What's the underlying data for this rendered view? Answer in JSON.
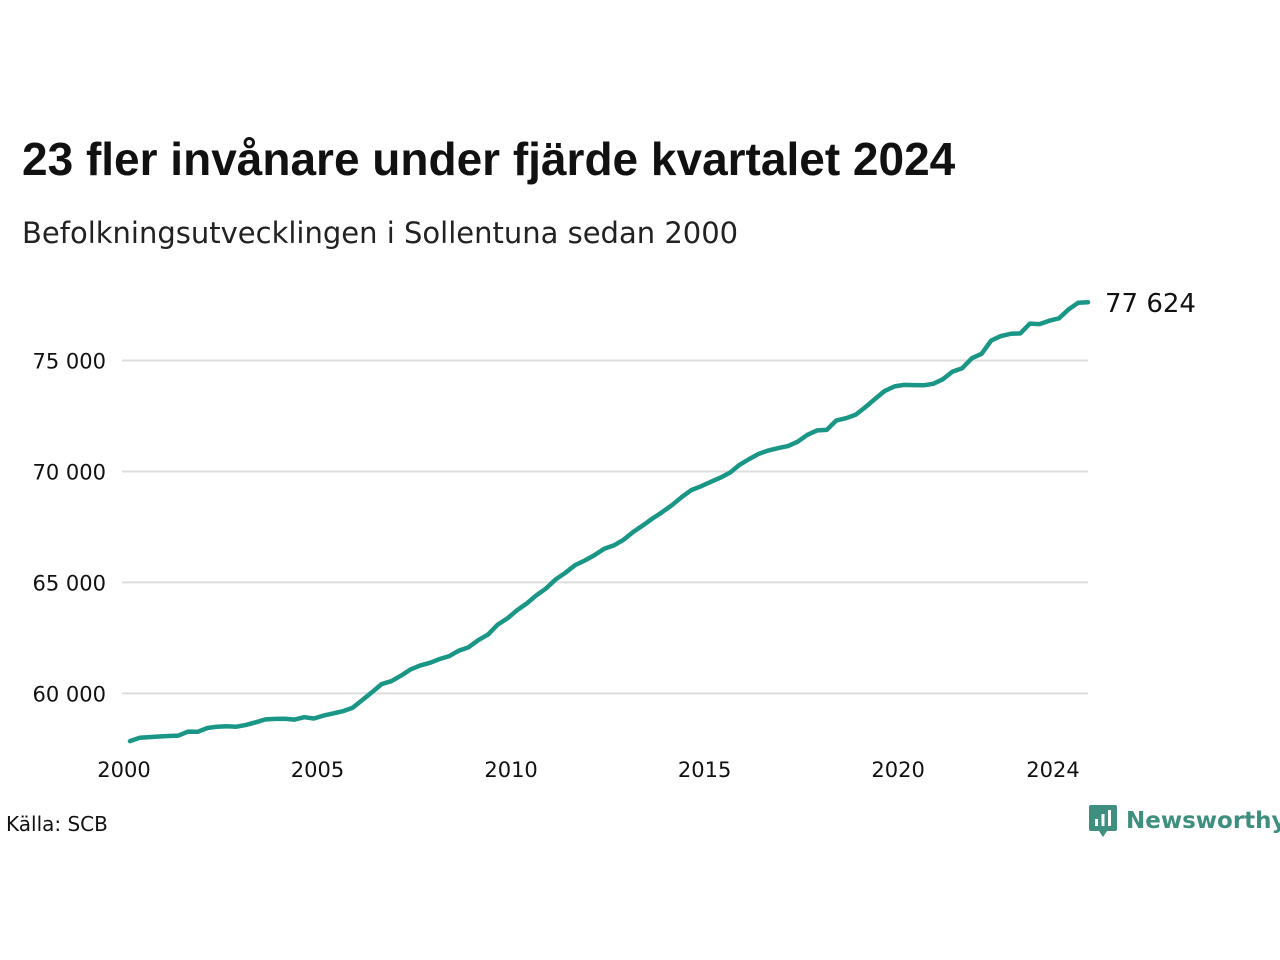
{
  "chart_data": {
    "type": "line",
    "title": "23 fler invånare under fjärde kvartalet 2024",
    "subtitle": "Befolkningsutvecklingen i Sollentuna sedan 2000",
    "xlabel": "",
    "ylabel": "",
    "x_ticks": [
      "2000",
      "2005",
      "2010",
      "2015",
      "2020",
      "2024"
    ],
    "x_tick_values": [
      2000,
      2005,
      2010,
      2015,
      2020,
      2024
    ],
    "y_ticks": [
      "60 000",
      "65 000",
      "70 000",
      "75 000"
    ],
    "y_tick_values": [
      60000,
      65000,
      70000,
      75000
    ],
    "xlim": [
      2000,
      2024.75
    ],
    "ylim": [
      57000,
      78400
    ],
    "grid": "horizontal",
    "line_color": "#1a9687",
    "end_label": "77 624",
    "quarters": [
      "2000Q1",
      "2000Q2",
      "2000Q3",
      "2000Q4",
      "2001Q1",
      "2001Q2",
      "2001Q3",
      "2001Q4",
      "2002Q1",
      "2002Q2",
      "2002Q3",
      "2002Q4",
      "2003Q1",
      "2003Q2",
      "2003Q3",
      "2003Q4",
      "2004Q1",
      "2004Q2",
      "2004Q3",
      "2004Q4",
      "2005Q1",
      "2005Q2",
      "2005Q3",
      "2005Q4",
      "2006Q1",
      "2006Q2",
      "2006Q3",
      "2006Q4",
      "2007Q1",
      "2007Q2",
      "2007Q3",
      "2007Q4",
      "2008Q1",
      "2008Q2",
      "2008Q3",
      "2008Q4",
      "2009Q1",
      "2009Q2",
      "2009Q3",
      "2009Q4",
      "2010Q1",
      "2010Q2",
      "2010Q3",
      "2010Q4",
      "2011Q1",
      "2011Q2",
      "2011Q3",
      "2011Q4",
      "2012Q1",
      "2012Q2",
      "2012Q3",
      "2012Q4",
      "2013Q1",
      "2013Q2",
      "2013Q3",
      "2013Q4",
      "2014Q1",
      "2014Q2",
      "2014Q3",
      "2014Q4",
      "2015Q1",
      "2015Q2",
      "2015Q3",
      "2015Q4",
      "2016Q1",
      "2016Q2",
      "2016Q3",
      "2016Q4",
      "2017Q1",
      "2017Q2",
      "2017Q3",
      "2017Q4",
      "2018Q1",
      "2018Q2",
      "2018Q3",
      "2018Q4",
      "2019Q1",
      "2019Q2",
      "2019Q3",
      "2019Q4",
      "2020Q1",
      "2020Q2",
      "2020Q3",
      "2020Q4",
      "2021Q1",
      "2021Q2",
      "2021Q3",
      "2021Q4",
      "2022Q1",
      "2022Q2",
      "2022Q3",
      "2022Q4",
      "2023Q1",
      "2023Q2",
      "2023Q3",
      "2023Q4",
      "2024Q1",
      "2024Q2",
      "2024Q3",
      "2024Q4"
    ],
    "series": [
      {
        "values": [
          57850,
          58000,
          58030,
          58060,
          58080,
          58100,
          58280,
          58270,
          58440,
          58500,
          58520,
          58500,
          58580,
          58700,
          58830,
          58850,
          58860,
          58820,
          58930,
          58870,
          59000,
          59100,
          59200,
          59350,
          59700,
          60050,
          60420,
          60550,
          60800,
          61080,
          61260,
          61380,
          61550,
          61680,
          61930,
          62080,
          62400,
          62650,
          63100,
          63380,
          63750,
          64050,
          64420,
          64730,
          65140,
          65440,
          65780,
          65990,
          66230,
          66520,
          66670,
          66920,
          67270,
          67570,
          67880,
          68170,
          68480,
          68840,
          69160,
          69330,
          69530,
          69720,
          69950,
          70300,
          70560,
          70800,
          70950,
          71050,
          71140,
          71340,
          71650,
          71850,
          71870,
          72300,
          72400,
          72560,
          72900,
          73270,
          73630,
          73830,
          73900,
          73890,
          73880,
          73950,
          74150,
          74500,
          74650,
          75100,
          75300,
          75900,
          76100,
          76200,
          76220,
          76660,
          76640,
          76790,
          76900,
          77300,
          77601,
          77624
        ]
      }
    ]
  },
  "source": "Källa: SCB",
  "brand": "Newsworthy",
  "brand_color": "#3f8f80",
  "brand_icon": "newsworthy-logo-icon"
}
